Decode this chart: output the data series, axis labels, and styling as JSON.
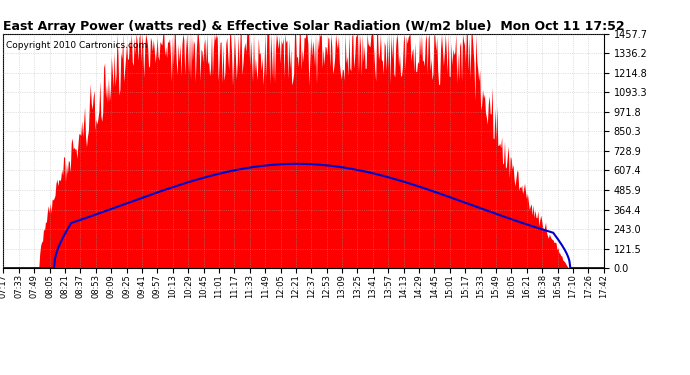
{
  "title": "East Array Power (watts red) & Effective Solar Radiation (W/m2 blue)  Mon Oct 11 17:52",
  "copyright": "Copyright 2010 Cartronics.com",
  "ymax": 1457.7,
  "yticks": [
    0.0,
    121.5,
    243.0,
    364.4,
    485.9,
    607.4,
    728.9,
    850.3,
    971.8,
    1093.3,
    1214.8,
    1336.2,
    1457.7
  ],
  "background_color": "#ffffff",
  "grid_color": "#aaaaaa",
  "fill_color": "#ff0000",
  "line_color": "#0000cc",
  "title_fontsize": 9,
  "copyright_fontsize": 6.5,
  "num_points": 630,
  "xtick_labels": [
    "07:17",
    "07:33",
    "07:49",
    "08:05",
    "08:21",
    "08:37",
    "08:53",
    "09:09",
    "09:25",
    "09:41",
    "09:57",
    "10:13",
    "10:29",
    "10:45",
    "11:01",
    "11:17",
    "11:33",
    "11:49",
    "12:05",
    "12:21",
    "12:37",
    "12:53",
    "13:09",
    "13:25",
    "13:41",
    "13:57",
    "14:13",
    "14:29",
    "14:45",
    "15:01",
    "15:17",
    "15:33",
    "15:49",
    "16:05",
    "16:21",
    "16:38",
    "16:54",
    "17:10",
    "17:26",
    "17:42"
  ]
}
